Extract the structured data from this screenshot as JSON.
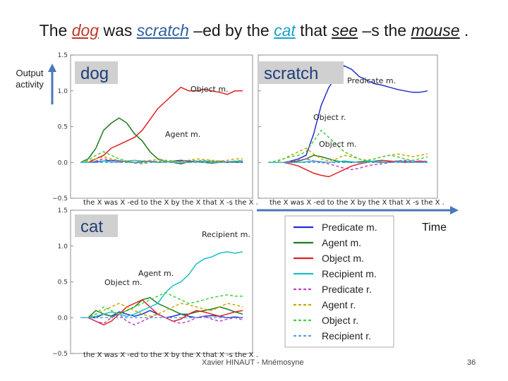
{
  "title": {
    "w1": "The ",
    "w2": "dog",
    "w3": " was ",
    "w4": "scratch",
    "w5": " –ed by the ",
    "w6": "cat",
    "w7": " that ",
    "w8": "see",
    "w9": " –s the ",
    "w10": "mouse",
    "w11": " ."
  },
  "side_label": "Output activity",
  "time_label": "Time",
  "footer": "Xavier HINAUT - Mnémosyne",
  "page_number": "36",
  "chart_data": {
    "type": "line",
    "ylim": [
      -0.5,
      1.5
    ],
    "yticks": [
      "1.5",
      "1.0",
      "0.5",
      "0.0",
      "−0.5"
    ],
    "xlabel": "the X was X -ed to the X by the X that X -s the X .",
    "legend": [
      {
        "name": "Predicate m.",
        "color": "#1f2fc9",
        "dash": false
      },
      {
        "name": "Agent m.",
        "color": "#1e7a1e",
        "dash": false
      },
      {
        "name": "Object m.",
        "color": "#e02020",
        "dash": false
      },
      {
        "name": "Recipient m.",
        "color": "#18c0c8",
        "dash": false
      },
      {
        "name": "Predicate r.",
        "color": "#c040c0",
        "dash": true
      },
      {
        "name": "Agent r.",
        "color": "#c8a800",
        "dash": true
      },
      {
        "name": "Object r.",
        "color": "#40d040",
        "dash": true
      },
      {
        "name": "Recipient r.",
        "color": "#60a0e0",
        "dash": true
      }
    ],
    "panels": [
      {
        "tag": "dog",
        "annotations": [
          {
            "text": "Object m."
          },
          {
            "text": "Agent m."
          }
        ],
        "series": [
          {
            "name": "Predicate m.",
            "values": [
              0,
              0,
              0.01,
              0.02,
              0.03,
              0.02,
              0.01,
              0,
              0.01,
              0.02,
              0,
              0.01,
              0.02,
              0.03,
              0.02,
              0.01,
              0,
              0.01,
              0.02,
              0,
              0.01,
              0.02
            ]
          },
          {
            "name": "Agent m.",
            "values": [
              0,
              0.05,
              0.2,
              0.45,
              0.55,
              0.62,
              0.55,
              0.4,
              0.3,
              0.15,
              0.05,
              0.02,
              0,
              -0.02,
              0.01,
              0.02,
              0,
              -0.01,
              0,
              0.01,
              0,
              0
            ]
          },
          {
            "name": "Object m.",
            "values": [
              0,
              0,
              0.05,
              0.1,
              0.2,
              0.25,
              0.3,
              0.35,
              0.45,
              0.6,
              0.75,
              0.85,
              0.95,
              1.05,
              1.0,
              1.0,
              1.02,
              1.0,
              0.98,
              0.95,
              1.0,
              1.0
            ]
          },
          {
            "name": "Recipient m.",
            "values": [
              0,
              0,
              0,
              0.02,
              0.01,
              0,
              0.02,
              0.03,
              0.02,
              0.01,
              0,
              0.01,
              0.02,
              0.01,
              0,
              0.01,
              0.02,
              0.01,
              0,
              0.01,
              0.02,
              0.01
            ]
          },
          {
            "name": "Predicate r.",
            "values": [
              0,
              0,
              0.02,
              0.05,
              0.03,
              0.02,
              0.01,
              -0.01,
              0,
              0.02,
              0.01,
              0,
              0.01,
              0.02,
              0.03,
              0.02,
              0,
              0.01,
              0.02,
              0.01,
              0,
              0.01
            ]
          },
          {
            "name": "Agent r.",
            "values": [
              0,
              0.02,
              0.05,
              0.08,
              0.05,
              0.03,
              0.02,
              0,
              0.02,
              0.03,
              0.04,
              0.02,
              0,
              0.01,
              0.03,
              0.05,
              0.04,
              0.03,
              0.02,
              0.03,
              0.05,
              0.05
            ]
          },
          {
            "name": "Object r.",
            "values": [
              0,
              0.03,
              0.1,
              0.15,
              0.1,
              0.05,
              0.02,
              0,
              -0.02,
              0,
              0.02,
              0.03,
              0.02,
              0.01,
              0,
              0.02,
              0.03,
              0.02,
              0.01,
              0,
              0.02,
              0.03
            ]
          },
          {
            "name": "Recipient r.",
            "values": [
              0,
              0,
              0,
              0,
              0,
              0,
              0,
              0,
              0,
              0,
              0,
              0,
              0,
              0,
              0,
              0,
              0,
              0,
              0,
              0,
              0,
              0
            ]
          }
        ]
      },
      {
        "tag": "scratch",
        "annotations": [
          {
            "text": "Predicate m."
          },
          {
            "text": "Object r."
          },
          {
            "text": "Object m."
          }
        ],
        "series": [
          {
            "name": "Predicate m.",
            "values": [
              0,
              0,
              0,
              0.02,
              0.05,
              0.1,
              0.4,
              0.8,
              1.05,
              1.2,
              1.35,
              1.3,
              1.2,
              1.15,
              1.1,
              1.08,
              1.05,
              1.02,
              1.0,
              0.98,
              0.98,
              1.0
            ]
          },
          {
            "name": "Agent m.",
            "values": [
              0,
              0,
              0,
              0.01,
              0.02,
              0.05,
              0.1,
              0.08,
              0.05,
              0.02,
              0.01,
              0,
              0.01,
              0.02,
              0.01,
              0,
              0.01,
              0.02,
              0.01,
              0,
              0.01,
              0
            ]
          },
          {
            "name": "Object m.",
            "values": [
              0,
              0,
              0,
              -0.02,
              -0.05,
              -0.1,
              -0.15,
              -0.18,
              -0.2,
              -0.15,
              -0.1,
              -0.05,
              -0.02,
              0,
              0.02,
              0.03,
              0.02,
              0.01,
              0,
              0.01,
              0.02,
              0.01
            ]
          },
          {
            "name": "Recipient m.",
            "values": [
              0,
              0,
              0,
              0,
              0,
              0.01,
              0.02,
              0.01,
              0,
              0.01,
              0.02,
              0.01,
              0,
              0.01,
              0.02,
              0.01,
              0,
              0.01,
              0.02,
              0.01,
              0,
              0.01
            ]
          },
          {
            "name": "Predicate r.",
            "values": [
              0,
              0,
              0,
              0.02,
              0.03,
              0.05,
              0.02,
              0,
              -0.02,
              -0.05,
              -0.08,
              -0.1,
              -0.08,
              -0.05,
              -0.03,
              -0.02,
              0,
              0.02,
              0.03,
              0.02,
              0.01,
              0.02
            ]
          },
          {
            "name": "Agent r.",
            "values": [
              0,
              0,
              0.05,
              0.1,
              0.15,
              0.2,
              0.12,
              0.05,
              0.02,
              0.05,
              0.1,
              0.08,
              0.05,
              0.03,
              0.05,
              0.08,
              0.1,
              0.12,
              0.1,
              0.08,
              0.1,
              0.12
            ]
          },
          {
            "name": "Object r.",
            "values": [
              0,
              0.02,
              0.05,
              0.08,
              0.1,
              0.15,
              0.3,
              0.45,
              0.35,
              0.25,
              0.15,
              0.1,
              0.05,
              0.02,
              0.05,
              0.08,
              0.1,
              0.08,
              0.05,
              0.03,
              0.05,
              0.08
            ]
          },
          {
            "name": "Recipient r.",
            "values": [
              0,
              0,
              0,
              0,
              0,
              0,
              0,
              0,
              0,
              0,
              0,
              0,
              0,
              0,
              0,
              0,
              0,
              0,
              0,
              0,
              0,
              0
            ]
          }
        ]
      },
      {
        "tag": "cat",
        "annotations": [
          {
            "text": "Recipient m."
          },
          {
            "text": "Agent m."
          },
          {
            "text": "Object m."
          }
        ],
        "series": [
          {
            "name": "Predicate m.",
            "values": [
              0,
              0,
              0,
              0.05,
              0.02,
              0.08,
              0.05,
              0.02,
              0.05,
              0.1,
              0.05,
              0,
              0.02,
              0.05,
              0.02,
              0,
              0.02,
              0.03,
              0.02,
              0,
              0.01,
              0
            ]
          },
          {
            "name": "Agent m.",
            "values": [
              0,
              0,
              0.1,
              0.05,
              0.02,
              0.05,
              0.1,
              0.15,
              0.25,
              0.28,
              0.2,
              0.15,
              0.1,
              0.05,
              0.05,
              0.08,
              0.1,
              0.12,
              0.15,
              0.12,
              0.08,
              0.05
            ]
          },
          {
            "name": "Object m.",
            "values": [
              0,
              0,
              -0.05,
              -0.1,
              -0.05,
              0.05,
              0.15,
              0.2,
              0.25,
              0.15,
              0.05,
              0,
              -0.05,
              -0.02,
              0.05,
              0.1,
              0.08,
              0.05,
              0.02,
              0.05,
              0.08,
              0.1
            ]
          },
          {
            "name": "Recipient m.",
            "values": [
              0,
              0,
              0.02,
              0.05,
              0.08,
              0.05,
              0.02,
              0.05,
              0.1,
              0.15,
              0.2,
              0.35,
              0.45,
              0.5,
              0.6,
              0.75,
              0.82,
              0.85,
              0.9,
              0.92,
              0.9,
              0.92
            ]
          },
          {
            "name": "Predicate r.",
            "values": [
              0,
              0,
              -0.05,
              -0.08,
              0,
              0.05,
              -0.05,
              -0.1,
              -0.05,
              0,
              0.05,
              0,
              -0.05,
              -0.08,
              -0.05,
              0,
              0.02,
              -0.02,
              -0.05,
              -0.02,
              0,
              -0.03
            ]
          },
          {
            "name": "Agent r.",
            "values": [
              0,
              0,
              0.05,
              0.1,
              0.15,
              0.2,
              0.15,
              0.1,
              0.05,
              0.02,
              0.05,
              0.1,
              0.15,
              0.2,
              0.18,
              0.15,
              0.12,
              0.1,
              0.15,
              0.2,
              0.18,
              0.15
            ]
          },
          {
            "name": "Object r.",
            "values": [
              0,
              0,
              0.05,
              0.15,
              0.1,
              0.05,
              0.1,
              0.15,
              0.2,
              0.25,
              0.3,
              0.35,
              0.3,
              0.25,
              0.2,
              0.22,
              0.25,
              0.28,
              0.3,
              0.32,
              0.3,
              0.3
            ]
          },
          {
            "name": "Recipient r.",
            "values": [
              0,
              0,
              0,
              0,
              0,
              0,
              0,
              0,
              0,
              0,
              0,
              0,
              0,
              0,
              0,
              0,
              0,
              0,
              0,
              0,
              0,
              0
            ]
          }
        ]
      }
    ]
  }
}
